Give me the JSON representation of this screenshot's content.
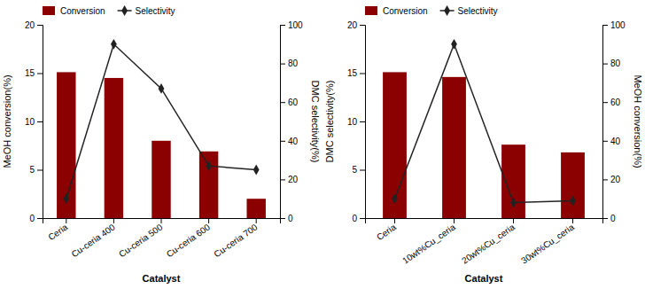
{
  "chart_data": [
    {
      "type": "bar",
      "xlabel": "Catalyst",
      "ylabel": "MeOH conversion(%)",
      "y2label": "DMC selectivity(%)",
      "categories": [
        "Ceria",
        "Cu-ceria 400",
        "Cu-ceria 500",
        "Cu-ceria 600",
        "Cu-ceria 700"
      ],
      "series": [
        {
          "name": "Conversion",
          "type": "bar",
          "color": "#8B0000",
          "values": [
            15.1,
            14.5,
            8.0,
            6.9,
            2.0
          ]
        },
        {
          "name": "Selectivity",
          "type": "line",
          "axis": "y2",
          "color": "#222222",
          "marker": "diamond",
          "values": [
            10,
            90,
            67,
            27,
            25
          ]
        }
      ],
      "ylim": [
        0,
        20
      ],
      "yticks": [
        0,
        5,
        10,
        15,
        20
      ],
      "y2lim": [
        0,
        100
      ],
      "y2ticks": [
        0,
        20,
        40,
        60,
        80,
        100
      ],
      "legend": "upper left"
    },
    {
      "type": "bar",
      "xlabel": "Catalyst",
      "ylabel": "DMC selectivity(%)",
      "y2label": "MeOH conversion(%)",
      "categories": [
        "Ceria",
        "10wt%Cu_ceria",
        "20wt%Cu_ceria",
        "30wt%Cu_ceria"
      ],
      "series": [
        {
          "name": "Conversion",
          "type": "bar",
          "color": "#8B0000",
          "values": [
            15.1,
            14.6,
            7.6,
            6.8
          ]
        },
        {
          "name": "Selectivity",
          "type": "line",
          "axis": "y2",
          "color": "#222222",
          "marker": "diamond",
          "values": [
            10,
            90,
            8,
            9
          ]
        }
      ],
      "ylim": [
        0,
        20
      ],
      "yticks": [
        0,
        5,
        10,
        15,
        20
      ],
      "y2lim": [
        0,
        100
      ],
      "y2ticks": [
        0,
        20,
        40,
        60,
        80,
        100
      ],
      "legend": "upper left"
    }
  ]
}
